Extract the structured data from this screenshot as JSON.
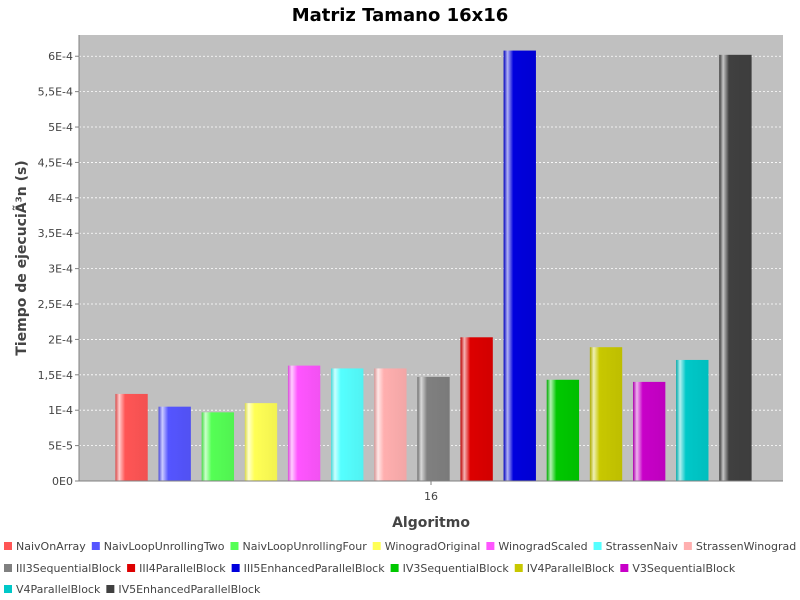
{
  "chart_data": {
    "type": "bar",
    "title": "Matriz Tamano 16x16",
    "xlabel": "Algoritmo",
    "ylabel": "Tiempo de ejecuciÃ³n (s)",
    "categories": [
      "16"
    ],
    "ylim": [
      0,
      0.00063
    ],
    "yticks": [
      0,
      5e-05,
      0.0001,
      0.00015,
      0.0002,
      0.00025,
      0.0003,
      0.00035,
      0.0004,
      0.00045,
      0.0005,
      0.00055,
      0.0006
    ],
    "ytick_labels": [
      "0E0",
      "5E-5",
      "1E-4",
      "1,5E-4",
      "2E-4",
      "2,5E-4",
      "3E-4",
      "3,5E-4",
      "4E-4",
      "4,5E-4",
      "5E-4",
      "5,5E-4",
      "6E-4"
    ],
    "grid": true,
    "legend_position": "bottom",
    "plot_background": "#c0c0c0",
    "series": [
      {
        "name": "NaivOnArray",
        "values": [
          0.000123
        ],
        "color": "#ff5555"
      },
      {
        "name": "NaivLoopUnrollingTwo",
        "values": [
          0.000105
        ],
        "color": "#5555ff"
      },
      {
        "name": "NaivLoopUnrollingFour",
        "values": [
          9.7e-05
        ],
        "color": "#55ff55"
      },
      {
        "name": "WinogradOriginal",
        "values": [
          0.00011
        ],
        "color": "#ffff55"
      },
      {
        "name": "WinogradScaled",
        "values": [
          0.000163
        ],
        "color": "#ff55ff"
      },
      {
        "name": "StrassenNaiv",
        "values": [
          0.000159
        ],
        "color": "#55ffff"
      },
      {
        "name": "StrassenWinograd",
        "values": [
          0.000159
        ],
        "color": "#ffafaf"
      },
      {
        "name": "III3SequentialBlock",
        "values": [
          0.000147
        ],
        "color": "#808080"
      },
      {
        "name": "III4ParallelBlock",
        "values": [
          0.000203
        ],
        "color": "#dd0000"
      },
      {
        "name": "III5EnhancedParallelBlock",
        "values": [
          0.000608
        ],
        "color": "#0000dd"
      },
      {
        "name": "IV3SequentialBlock",
        "values": [
          0.000143
        ],
        "color": "#00c800"
      },
      {
        "name": "IV4ParallelBlock",
        "values": [
          0.000189
        ],
        "color": "#c8c800"
      },
      {
        "name": "V3SequentialBlock",
        "values": [
          0.00014
        ],
        "color": "#c800c8"
      },
      {
        "name": "V4ParallelBlock",
        "values": [
          0.000171
        ],
        "color": "#00c8c8"
      },
      {
        "name": "IV5EnhancedParallelBlock",
        "values": [
          0.000602
        ],
        "color": "#404040"
      }
    ]
  }
}
